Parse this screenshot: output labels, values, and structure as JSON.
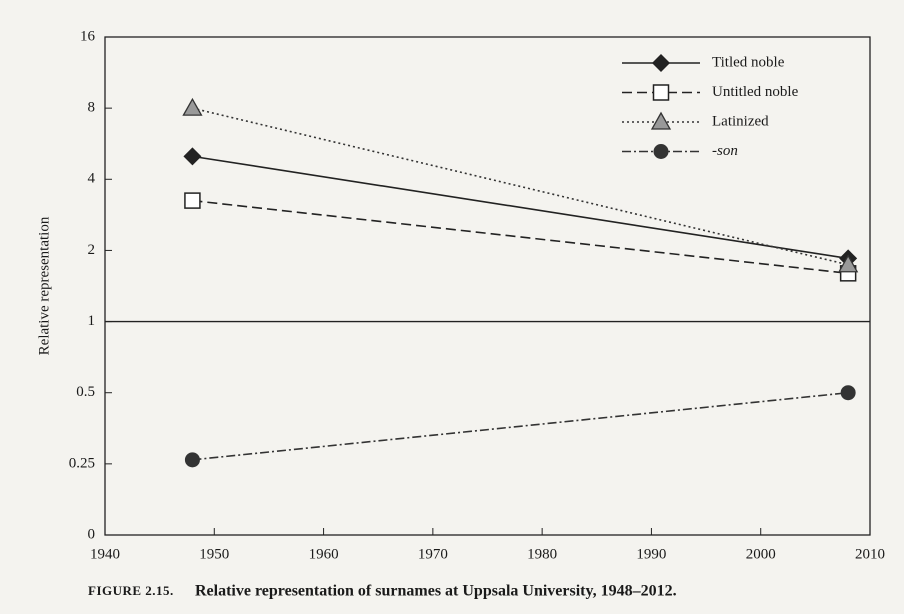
{
  "chart_data": {
    "type": "line",
    "y_label": "Relative representation",
    "caption_label": "FIGURE 2.15.",
    "caption": "Relative representation of surnames at Uppsala University, 1948–2012.",
    "x": [
      1948,
      2008
    ],
    "xlim": [
      1940,
      2010
    ],
    "xticks": [
      1940,
      1950,
      1960,
      1970,
      1980,
      1990,
      2000,
      2010
    ],
    "ylim": [
      0.125,
      16
    ],
    "yticks": [
      {
        "value": 0.125,
        "label": "0"
      },
      0.25,
      0.5,
      1,
      2,
      4,
      8,
      16
    ],
    "log_y": true,
    "reference_line": 1,
    "legend": "top-right",
    "series": [
      {
        "name": "Titled noble",
        "color": "#222222",
        "marker": "diamond",
        "dash": "solid",
        "values": [
          5.0,
          1.85
        ]
      },
      {
        "name": "Untitled noble",
        "color": "#222222",
        "marker": "square-open",
        "dash": "dashed",
        "values": [
          3.25,
          1.6
        ]
      },
      {
        "name": "Latinized",
        "color": "#333333",
        "marker": "triangle",
        "dash": "dotted",
        "values": [
          8,
          1.74
        ]
      },
      {
        "name": "-son",
        "color": "#333333",
        "marker": "circle",
        "dash": "dashdot",
        "italic": true,
        "values": [
          0.26,
          0.5
        ]
      }
    ]
  }
}
